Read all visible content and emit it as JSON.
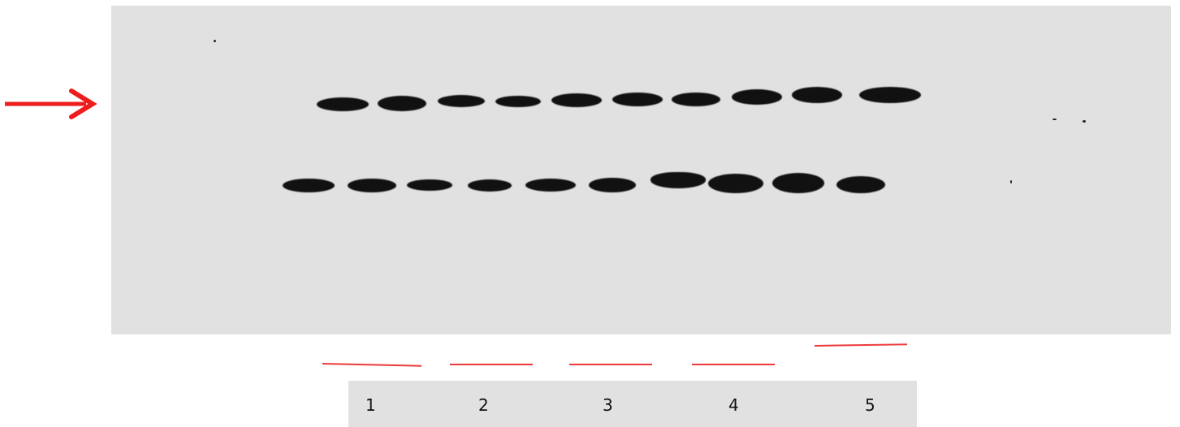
{
  "arrow_icon": "red-right-arrow-icon",
  "lane_labels": [
    "1",
    "2",
    "3",
    "4",
    "5"
  ],
  "colors": {
    "membrane": "#e1e1e1",
    "band": "#111111",
    "accent_red": "#ec3a3a"
  }
}
